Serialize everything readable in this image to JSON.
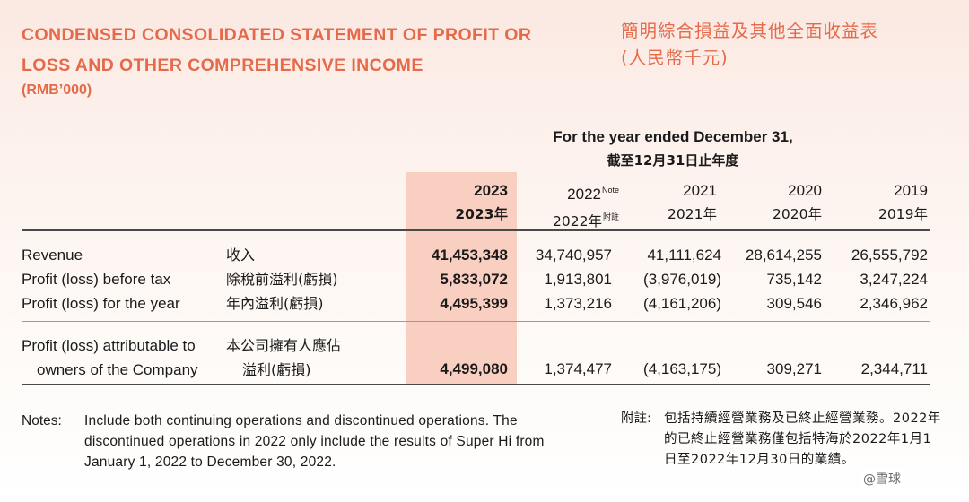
{
  "title": {
    "en_line1": "CONDENSED CONSOLIDATED STATEMENT OF PROFIT OR",
    "en_line2": "LOSS AND OTHER COMPREHENSIVE INCOME",
    "en_unit": "(RMB’000)",
    "zh_line1": "簡明綜合損益及其他全面收益表",
    "zh_line2": "(人民幣千元)"
  },
  "period": {
    "en": "For the year ended December 31,",
    "zh": "截至12月31日止年度"
  },
  "years": [
    {
      "en": "2023",
      "zh": "2023年",
      "note_en": "",
      "note_zh": ""
    },
    {
      "en": "2022",
      "zh": "2022年",
      "note_en": "Note",
      "note_zh": "附註"
    },
    {
      "en": "2021",
      "zh": "2021年",
      "note_en": "",
      "note_zh": ""
    },
    {
      "en": "2020",
      "zh": "2020年",
      "note_en": "",
      "note_zh": ""
    },
    {
      "en": "2019",
      "zh": "2019年",
      "note_en": "",
      "note_zh": ""
    }
  ],
  "rows": [
    {
      "en": "Revenue",
      "zh": "收入",
      "values": [
        "41,453,348",
        "34,740,957",
        "41,111,624",
        "28,614,255",
        "26,555,792"
      ]
    },
    {
      "en": "Profit (loss) before tax",
      "zh": "除稅前溢利(虧損)",
      "values": [
        "5,833,072",
        "1,913,801",
        "(3,976,019)",
        "735,142",
        "3,247,224"
      ]
    },
    {
      "en": "Profit (loss) for the year",
      "zh": "年內溢利(虧損)",
      "values": [
        "4,495,399",
        "1,373,216",
        "(4,161,206)",
        "309,546",
        "2,346,962"
      ]
    }
  ],
  "attributable": {
    "en_line1": "Profit (loss) attributable to",
    "en_line2": "owners of the Company",
    "zh_line1": "本公司擁有人應佔",
    "zh_line2": "溢利(虧損)",
    "values": [
      "4,499,080",
      "1,374,477",
      "(4,163,175)",
      "309,271",
      "2,344,711"
    ]
  },
  "notes": {
    "en_label": "Notes:",
    "en_text": "Include both continuing operations and discontinued operations. The discontinued operations in 2022 only include the results of Super Hi from January 1, 2022 to December 30, 2022.",
    "zh_label": "附註:",
    "zh_text": "包括持續經營業務及已終止經營業務。2022年的已終止經營業務僅包括特海於2022年1月1日至2022年12月30日的業績。"
  },
  "watermark": "@雪球"
}
